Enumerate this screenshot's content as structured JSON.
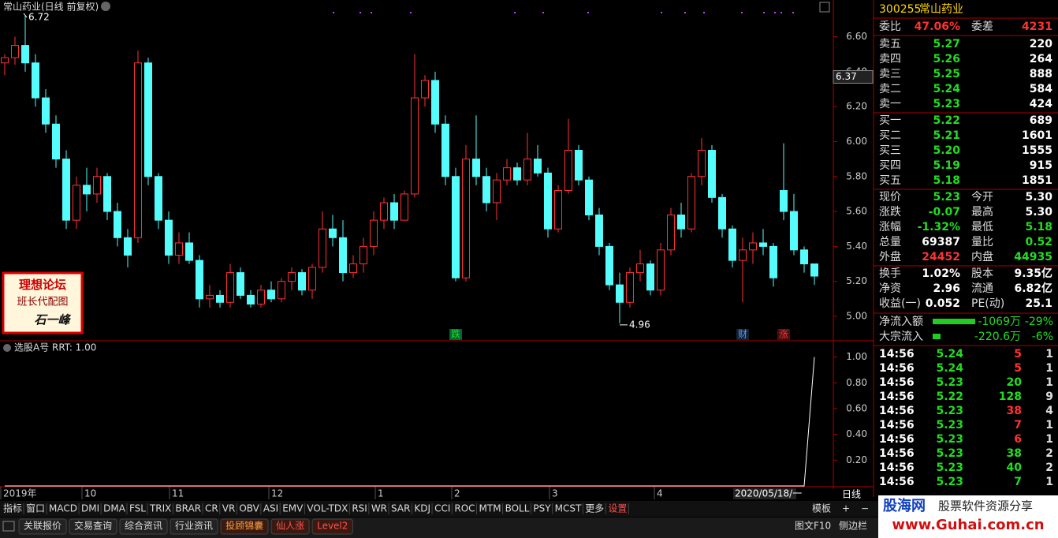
{
  "kline": {
    "type": "candlestick",
    "title": "常山药业(日线 前复权)",
    "ylim": [
      4.86,
      6.81
    ],
    "yticks": [
      {
        "value": 6.6,
        "label": "6.60"
      },
      {
        "value": 6.4,
        "label": "6.40"
      },
      {
        "value": 6.2,
        "label": "6.20"
      },
      {
        "value": 6.0,
        "label": "6.00"
      },
      {
        "value": 5.8,
        "label": "5.80"
      },
      {
        "value": 5.6,
        "label": "5.60"
      },
      {
        "value": 5.4,
        "label": "5.40"
      },
      {
        "value": 5.2,
        "label": "5.20"
      },
      {
        "value": 5.0,
        "label": "5.00"
      }
    ],
    "up_color": "#ff3232",
    "down_color": "#54fcfc",
    "max": 6.72,
    "min": 4.96,
    "cursor_price": 6.37,
    "candles": [
      [
        6.45,
        6.5,
        6.38,
        6.48
      ],
      [
        6.48,
        6.6,
        6.44,
        6.55
      ],
      [
        6.55,
        6.72,
        6.4,
        6.45
      ],
      [
        6.45,
        6.5,
        6.2,
        6.25
      ],
      [
        6.25,
        6.3,
        6.05,
        6.1
      ],
      [
        6.1,
        6.15,
        5.85,
        5.9
      ],
      [
        5.9,
        5.95,
        5.5,
        5.55
      ],
      [
        5.55,
        5.8,
        5.5,
        5.75
      ],
      [
        5.75,
        5.85,
        5.6,
        5.7
      ],
      [
        5.7,
        5.85,
        5.65,
        5.8
      ],
      [
        5.8,
        5.82,
        5.55,
        5.6
      ],
      [
        5.6,
        5.65,
        5.4,
        5.45
      ],
      [
        5.45,
        5.5,
        5.28,
        5.35
      ],
      [
        5.45,
        6.52,
        5.42,
        6.45
      ],
      [
        6.45,
        6.48,
        5.75,
        5.8
      ],
      [
        5.8,
        5.82,
        5.5,
        5.55
      ],
      [
        5.55,
        5.6,
        5.3,
        5.35
      ],
      [
        5.35,
        5.48,
        5.3,
        5.42
      ],
      [
        5.42,
        5.48,
        5.3,
        5.32
      ],
      [
        5.32,
        5.35,
        5.05,
        5.1
      ],
      [
        5.1,
        5.18,
        5.05,
        5.12
      ],
      [
        5.12,
        5.15,
        5.05,
        5.08
      ],
      [
        5.08,
        5.3,
        5.05,
        5.25
      ],
      [
        5.25,
        5.28,
        5.1,
        5.12
      ],
      [
        5.12,
        5.15,
        5.05,
        5.07
      ],
      [
        5.07,
        5.18,
        5.05,
        5.15
      ],
      [
        5.15,
        5.2,
        5.08,
        5.1
      ],
      [
        5.1,
        5.22,
        5.08,
        5.2
      ],
      [
        5.2,
        5.28,
        5.15,
        5.25
      ],
      [
        5.25,
        5.27,
        5.12,
        5.15
      ],
      [
        5.15,
        5.3,
        5.1,
        5.28
      ],
      [
        5.28,
        5.6,
        5.25,
        5.5
      ],
      [
        5.5,
        5.58,
        5.4,
        5.45
      ],
      [
        5.45,
        5.55,
        5.2,
        5.25
      ],
      [
        5.25,
        5.35,
        5.22,
        5.3
      ],
      [
        5.3,
        5.45,
        5.25,
        5.4
      ],
      [
        5.4,
        5.6,
        5.35,
        5.55
      ],
      [
        5.55,
        5.68,
        5.5,
        5.65
      ],
      [
        5.65,
        5.7,
        5.5,
        5.55
      ],
      [
        5.55,
        5.72,
        5.55,
        5.7
      ],
      [
        5.7,
        6.5,
        5.68,
        6.25
      ],
      [
        6.25,
        6.38,
        6.2,
        6.35
      ],
      [
        6.35,
        6.4,
        6.05,
        6.1
      ],
      [
        6.1,
        6.15,
        5.75,
        5.8
      ],
      [
        5.8,
        5.85,
        5.2,
        5.22
      ],
      [
        5.22,
        5.98,
        5.2,
        5.9
      ],
      [
        5.9,
        6.15,
        5.75,
        5.8
      ],
      [
        5.8,
        5.85,
        5.6,
        5.65
      ],
      [
        5.65,
        5.82,
        5.55,
        5.78
      ],
      [
        5.78,
        5.9,
        5.75,
        5.85
      ],
      [
        5.85,
        5.88,
        5.75,
        5.78
      ],
      [
        5.78,
        6.05,
        5.75,
        5.9
      ],
      [
        5.9,
        5.98,
        5.8,
        5.82
      ],
      [
        5.82,
        5.85,
        5.45,
        5.5
      ],
      [
        5.5,
        5.75,
        5.48,
        5.72
      ],
      [
        5.72,
        6.13,
        5.7,
        5.95
      ],
      [
        5.95,
        5.98,
        5.75,
        5.78
      ],
      [
        5.78,
        5.8,
        5.55,
        5.58
      ],
      [
        5.58,
        5.62,
        5.35,
        5.4
      ],
      [
        5.4,
        5.42,
        5.15,
        5.18
      ],
      [
        5.18,
        5.25,
        4.96,
        5.08
      ],
      [
        5.08,
        5.28,
        5.05,
        5.25
      ],
      [
        5.25,
        5.38,
        5.2,
        5.3
      ],
      [
        5.3,
        5.32,
        5.12,
        5.15
      ],
      [
        5.15,
        5.42,
        5.12,
        5.38
      ],
      [
        5.38,
        5.62,
        5.35,
        5.58
      ],
      [
        5.58,
        5.65,
        5.45,
        5.5
      ],
      [
        5.5,
        5.82,
        5.48,
        5.8
      ],
      [
        5.8,
        6.02,
        5.75,
        5.95
      ],
      [
        5.95,
        5.98,
        5.65,
        5.68
      ],
      [
        5.68,
        5.7,
        5.45,
        5.5
      ],
      [
        5.5,
        5.52,
        5.28,
        5.32
      ],
      [
        5.32,
        5.45,
        5.08,
        5.38
      ],
      [
        5.38,
        5.48,
        5.3,
        5.42
      ],
      [
        5.42,
        5.5,
        5.35,
        5.4
      ],
      [
        5.4,
        5.42,
        5.17,
        5.22
      ],
      [
        5.72,
        5.99,
        5.55,
        5.6
      ],
      [
        5.6,
        5.7,
        5.35,
        5.38
      ],
      [
        5.38,
        5.4,
        5.25,
        5.3
      ],
      [
        5.3,
        5.3,
        5.18,
        5.23
      ]
    ],
    "x_labels": [
      "2019年",
      "10",
      "11",
      "12",
      "1",
      "2",
      "3",
      "4"
    ],
    "date_label": "2020/05/18/一",
    "period": "日线",
    "events": [
      "跌",
      "财",
      "涨"
    ]
  },
  "indicator": {
    "type": "line",
    "title": "选股A号",
    "legend": "RRT: 1.00",
    "color": "#ffffff",
    "ylim": [
      0,
      1.12
    ],
    "yticks": [
      {
        "value": 1,
        "label": "1.00"
      },
      {
        "value": 0.8,
        "label": "0.80"
      },
      {
        "value": 0.6,
        "label": "0.60"
      },
      {
        "value": 0.4,
        "label": "0.40"
      },
      {
        "value": 0.2,
        "label": "0.20"
      }
    ],
    "values": [
      0,
      0,
      0,
      0,
      0,
      0,
      0,
      0,
      0,
      0,
      0,
      0,
      0,
      0,
      0,
      0,
      0,
      0,
      0,
      0,
      0,
      0,
      0,
      0,
      0,
      0,
      0,
      0,
      0,
      0,
      0,
      0,
      0,
      0,
      0,
      0,
      0,
      0,
      0,
      0,
      0,
      0,
      0,
      0,
      0,
      0,
      0,
      0,
      0,
      0,
      0,
      0,
      0,
      0,
      0,
      0,
      0,
      0,
      0,
      0,
      0,
      0,
      0,
      0,
      0,
      0,
      0,
      0,
      0,
      0,
      0,
      0,
      0,
      0,
      0,
      0,
      0,
      0,
      0,
      1
    ]
  },
  "quote": {
    "code": "300255",
    "name": "常山药业",
    "top": [
      {
        "label": "委比",
        "value": "47.06%",
        "color": "#ff3232"
      },
      {
        "label": "委差",
        "value": "4231",
        "color": "#ff3232"
      }
    ],
    "asks": [
      {
        "label": "卖五",
        "price": "5.27",
        "volume": "220"
      },
      {
        "label": "卖四",
        "price": "5.26",
        "volume": "264"
      },
      {
        "label": "卖三",
        "price": "5.25",
        "volume": "888"
      },
      {
        "label": "卖二",
        "price": "5.24",
        "volume": "584"
      },
      {
        "label": "卖一",
        "price": "5.23",
        "volume": "424"
      }
    ],
    "bids": [
      {
        "label": "买一",
        "price": "5.22",
        "volume": "689"
      },
      {
        "label": "买二",
        "price": "5.21",
        "volume": "1601"
      },
      {
        "label": "买三",
        "price": "5.20",
        "volume": "1555"
      },
      {
        "label": "买四",
        "price": "5.19",
        "volume": "915"
      },
      {
        "label": "买五",
        "price": "5.18",
        "volume": "1851"
      }
    ],
    "stats": [
      [
        {
          "label": "现价",
          "value": "5.23",
          "color": "#22dd22"
        },
        {
          "label": "今开",
          "value": "5.30",
          "color": "#ffffff"
        }
      ],
      [
        {
          "label": "涨跌",
          "value": "-0.07",
          "color": "#22dd22"
        },
        {
          "label": "最高",
          "value": "5.30",
          "color": "#ffffff"
        }
      ],
      [
        {
          "label": "涨幅",
          "value": "-1.32%",
          "color": "#22dd22"
        },
        {
          "label": "最低",
          "value": "5.18",
          "color": "#22dd22"
        }
      ],
      [
        {
          "label": "总量",
          "value": "69387",
          "color": "#ffffff"
        },
        {
          "label": "量比",
          "value": "0.52",
          "color": "#22dd22"
        }
      ],
      [
        {
          "label": "外盘",
          "value": "24452",
          "color": "#ff3232"
        },
        {
          "label": "内盘",
          "value": "44935",
          "color": "#22dd22"
        }
      ]
    ],
    "fundamentals": [
      [
        {
          "label": "换手",
          "value": "1.02%"
        },
        {
          "label": "股本",
          "value": "9.35亿"
        }
      ],
      [
        {
          "label": "净资",
          "value": "2.96"
        },
        {
          "label": "流通",
          "value": "6.82亿"
        }
      ],
      [
        {
          "label": "收益(一)",
          "value": "0.052"
        },
        {
          "label": "PE(动)",
          "value": "25.1"
        }
      ]
    ],
    "flows": [
      {
        "label": "净流入额",
        "amount": "-1069万",
        "ratio": "-29%"
      },
      {
        "label": "大宗流入",
        "amount": "-220.6万",
        "ratio": "-6%"
      }
    ],
    "ticks": [
      {
        "time": "14:56",
        "price": "5.24",
        "volume": "5",
        "count": "1",
        "color": "#ff3232"
      },
      {
        "time": "14:56",
        "price": "5.24",
        "volume": "5",
        "count": "1",
        "color": "#ff3232"
      },
      {
        "time": "14:56",
        "price": "5.23",
        "volume": "20",
        "count": "1",
        "color": "#22dd22"
      },
      {
        "time": "14:56",
        "price": "5.22",
        "volume": "128",
        "count": "9",
        "color": "#22dd22"
      },
      {
        "time": "14:56",
        "price": "5.23",
        "volume": "38",
        "count": "4",
        "color": "#ff3232"
      },
      {
        "time": "14:56",
        "price": "5.23",
        "volume": "7",
        "count": "1",
        "color": "#ff3232"
      },
      {
        "time": "14:56",
        "price": "5.23",
        "volume": "6",
        "count": "1",
        "color": "#ff3232"
      },
      {
        "time": "14:56",
        "price": "5.23",
        "volume": "38",
        "count": "2",
        "color": "#22dd22"
      },
      {
        "time": "14:56",
        "price": "5.23",
        "volume": "40",
        "count": "2",
        "color": "#22dd22"
      },
      {
        "time": "14:56",
        "price": "5.23",
        "volume": "7",
        "count": "1",
        "color": "#22dd22"
      }
    ]
  },
  "toolbar": {
    "tabs": [
      "指标",
      "窗口",
      "MACD",
      "DMI",
      "DMA",
      "FSL",
      "TRIX",
      "BRAR",
      "CR",
      "VR",
      "OBV",
      "ASI",
      "EMV",
      "VOL-TDX",
      "RSI",
      "WR",
      "SAR",
      "KDJ",
      "CCI",
      "ROC",
      "MTM",
      "BOLL",
      "PSY",
      "MCST",
      "更多",
      "设置"
    ],
    "right": [
      "模板",
      "+",
      "−"
    ]
  },
  "bottom_bar": {
    "tabs": [
      "关联报价",
      "交易查询",
      "综合资讯",
      "行业资讯",
      "投顾锦囊",
      "仙人涨",
      "Level2"
    ],
    "right": [
      "图文F10",
      "侧边栏"
    ]
  },
  "badge": {
    "line1": "理想论坛",
    "line2": "班长代配图",
    "line3": "石一峰"
  },
  "watermark": {
    "site": "股海网",
    "slogan": "股票软件资源分享",
    "url": "www.Guhai.com.cn"
  }
}
